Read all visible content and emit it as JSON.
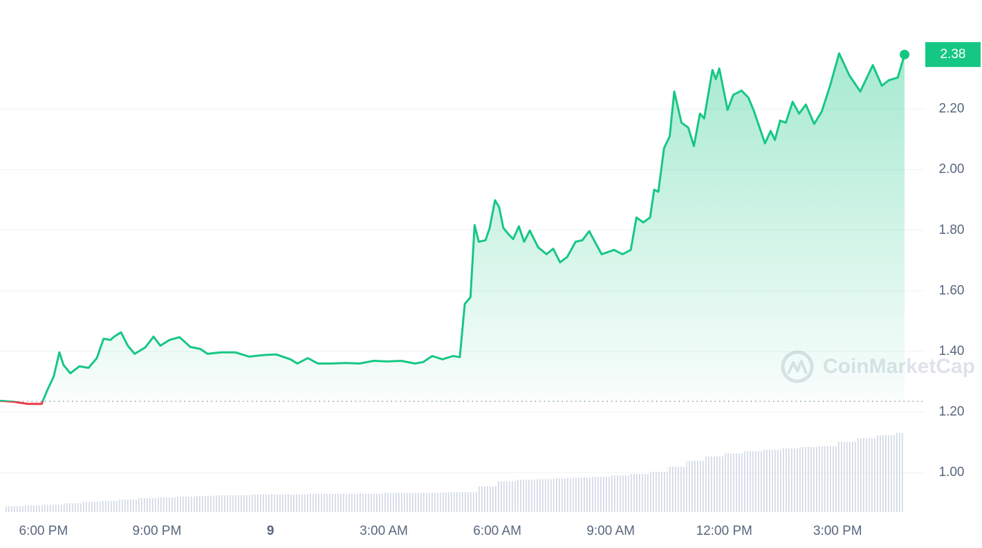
{
  "chart_data": {
    "type": "line",
    "color": "#16c784",
    "down_color": "#ea3943",
    "baseline": 1.235,
    "grid": true,
    "watermark": "CoinMarketCap",
    "xlim": [
      -1.15,
      23.3
    ],
    "ylim": [
      0.87,
      2.56
    ],
    "xticks": [
      {
        "value": 0,
        "label": "6:00 PM"
      },
      {
        "value": 3,
        "label": "9:00 PM"
      },
      {
        "value": 6,
        "label": "9"
      },
      {
        "value": 9,
        "label": "3:00 AM"
      },
      {
        "value": 12,
        "label": "6:00 AM"
      },
      {
        "value": 15,
        "label": "9:00 AM"
      },
      {
        "value": 18,
        "label": "12:00 PM"
      },
      {
        "value": 21,
        "label": "3:00 PM"
      }
    ],
    "yticks": [
      {
        "value": 1.0,
        "label": "1.00"
      },
      {
        "value": 1.2,
        "label": "1.20"
      },
      {
        "value": 1.4,
        "label": "1.40"
      },
      {
        "value": 1.6,
        "label": "1.60"
      },
      {
        "value": 1.8,
        "label": "1.80"
      },
      {
        "value": 2.0,
        "label": "2.00"
      },
      {
        "value": 2.2,
        "label": "2.20"
      }
    ],
    "x": [
      -1.15,
      -0.79,
      -0.42,
      -0.05,
      0.09,
      0.27,
      0.42,
      0.53,
      0.71,
      0.95,
      1.19,
      1.41,
      1.59,
      1.77,
      1.87,
      2.05,
      2.23,
      2.41,
      2.69,
      2.91,
      3.09,
      3.33,
      3.6,
      3.88,
      4.15,
      4.34,
      4.7,
      5.07,
      5.44,
      5.8,
      6.16,
      6.53,
      6.71,
      6.99,
      7.26,
      7.63,
      7.99,
      8.36,
      8.73,
      9.09,
      9.46,
      9.82,
      10.04,
      10.28,
      10.55,
      10.83,
      11.01,
      11.14,
      11.29,
      11.4,
      11.51,
      11.69,
      11.8,
      11.94,
      12.05,
      12.16,
      12.31,
      12.42,
      12.57,
      12.71,
      12.86,
      13.08,
      13.3,
      13.48,
      13.66,
      13.85,
      14.07,
      14.25,
      14.43,
      14.58,
      14.76,
      15.09,
      15.31,
      15.53,
      15.68,
      15.86,
      16.04,
      16.15,
      16.26,
      16.41,
      16.56,
      16.68,
      16.87,
      17.05,
      17.2,
      17.36,
      17.47,
      17.69,
      17.78,
      17.87,
      18.09,
      18.24,
      18.46,
      18.64,
      18.79,
      19.08,
      19.23,
      19.34,
      19.48,
      19.63,
      19.81,
      19.98,
      20.16,
      20.38,
      20.58,
      20.8,
      21.04,
      21.31,
      21.6,
      21.93,
      22.17,
      22.35,
      22.59,
      22.77
    ],
    "values": [
      1.237,
      1.234,
      1.227,
      1.227,
      1.269,
      1.317,
      1.397,
      1.355,
      1.328,
      1.351,
      1.346,
      1.378,
      1.442,
      1.438,
      1.449,
      1.463,
      1.419,
      1.392,
      1.413,
      1.449,
      1.419,
      1.438,
      1.447,
      1.415,
      1.408,
      1.392,
      1.397,
      1.397,
      1.383,
      1.388,
      1.39,
      1.374,
      1.36,
      1.378,
      1.36,
      1.36,
      1.362,
      1.36,
      1.369,
      1.367,
      1.369,
      1.36,
      1.365,
      1.385,
      1.374,
      1.385,
      1.381,
      1.557,
      1.579,
      1.817,
      1.762,
      1.767,
      1.808,
      1.899,
      1.876,
      1.808,
      1.785,
      1.771,
      1.813,
      1.762,
      1.799,
      1.744,
      1.721,
      1.739,
      1.694,
      1.712,
      1.762,
      1.767,
      1.797,
      1.762,
      1.721,
      1.735,
      1.721,
      1.735,
      1.842,
      1.826,
      1.842,
      1.934,
      1.927,
      2.071,
      2.11,
      2.258,
      2.155,
      2.139,
      2.078,
      2.185,
      2.169,
      2.329,
      2.299,
      2.334,
      2.197,
      2.247,
      2.261,
      2.238,
      2.192,
      2.087,
      2.128,
      2.098,
      2.162,
      2.155,
      2.224,
      2.185,
      2.215,
      2.151,
      2.192,
      2.277,
      2.384,
      2.311,
      2.258,
      2.345,
      2.277,
      2.295,
      2.304,
      2.38
    ],
    "volume": {
      "color": "#cfd6e4",
      "ylim": [
        0,
        700
      ],
      "x": [
        -1,
        -0.5,
        0,
        0.5,
        1,
        1.5,
        2,
        2.5,
        3,
        3.5,
        4,
        4.5,
        5,
        5.5,
        6,
        6.5,
        7,
        7.5,
        8,
        8.5,
        9,
        9.5,
        10,
        10.5,
        11,
        11.5,
        12,
        12.5,
        13,
        13.5,
        14,
        14.5,
        15,
        15.5,
        16,
        16.5,
        17,
        17.5,
        18,
        18.5,
        19,
        19.5,
        20,
        20.5,
        21,
        21.5,
        22,
        22.5
      ],
      "values": [
        8,
        9,
        10,
        12,
        14,
        15,
        17,
        19,
        20,
        21,
        22,
        23,
        23,
        24,
        24,
        24,
        25,
        25,
        25,
        25,
        26,
        26,
        26,
        27,
        27,
        35,
        42,
        44,
        45,
        46,
        47,
        48,
        50,
        52,
        55,
        62,
        70,
        76,
        80,
        83,
        85,
        87,
        89,
        90,
        96,
        101,
        105,
        108
      ]
    }
  }
}
